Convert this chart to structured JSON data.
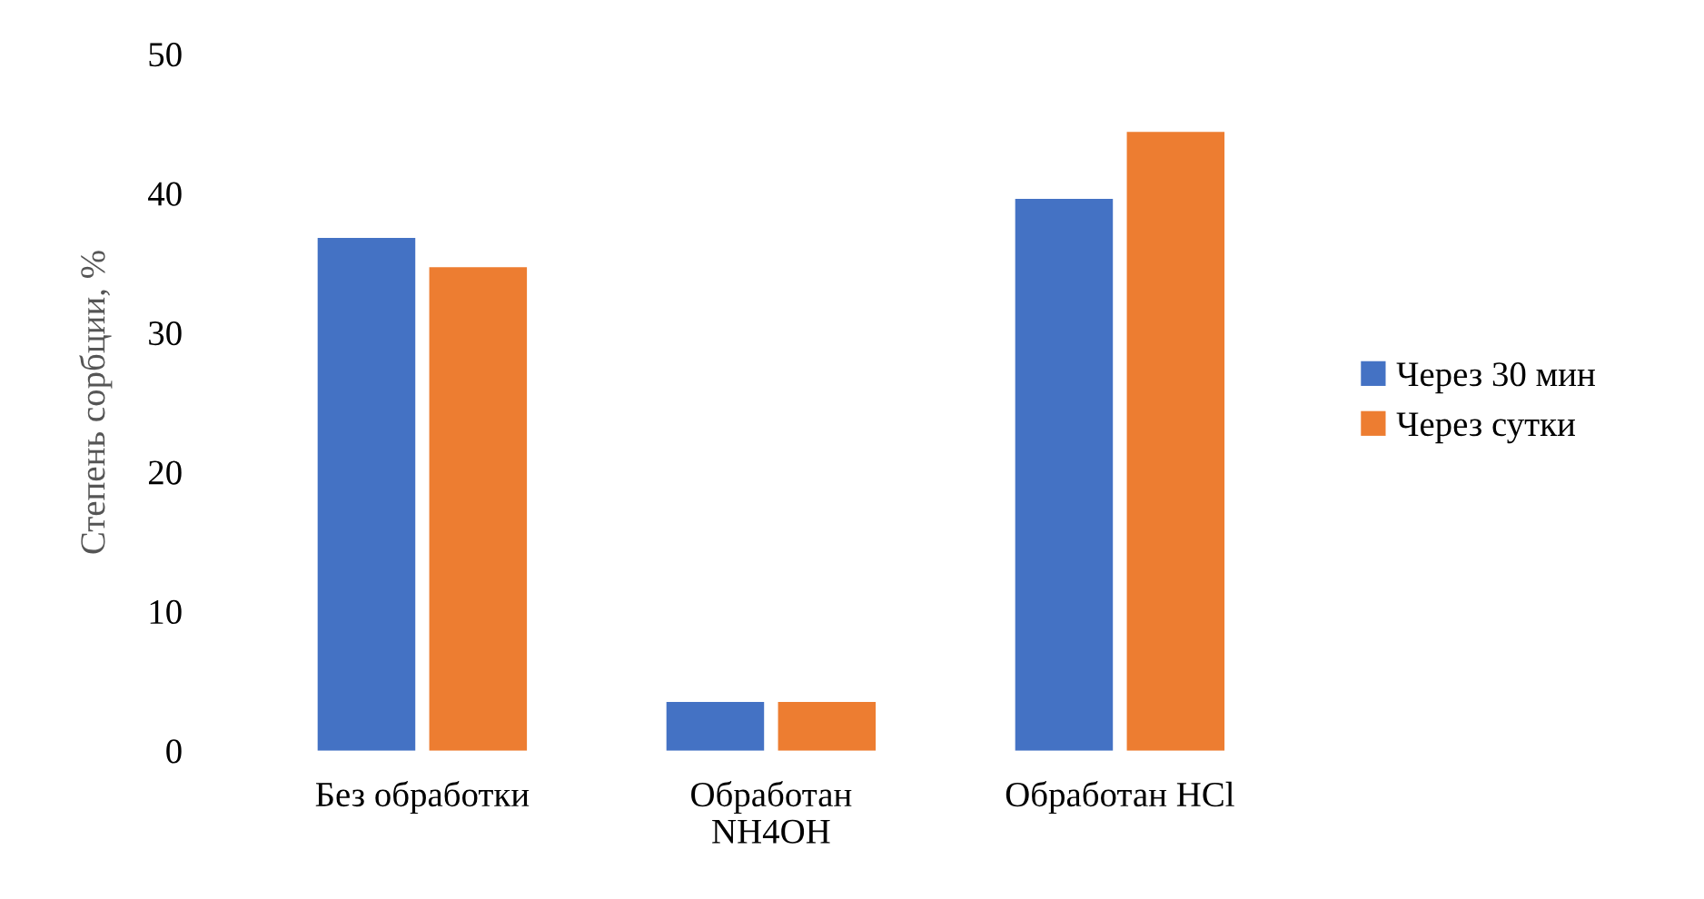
{
  "chart_data": {
    "type": "bar",
    "ylabel": "Степень сорбции, %",
    "categories": [
      "Без обработки",
      "Обработан\nNH4OH",
      "Обработан HCl"
    ],
    "series": [
      {
        "name": "Через 30 мин",
        "color": "#4472c4",
        "values": [
          36.8,
          3.5,
          39.6
        ]
      },
      {
        "name": "Через сутки",
        "color": "#ed7d31",
        "values": [
          34.7,
          3.5,
          44.4
        ]
      }
    ],
    "ylim": [
      0,
      50
    ],
    "yticks": [
      0,
      10,
      20,
      30,
      40,
      50
    ],
    "grid": false,
    "legend": "right"
  }
}
